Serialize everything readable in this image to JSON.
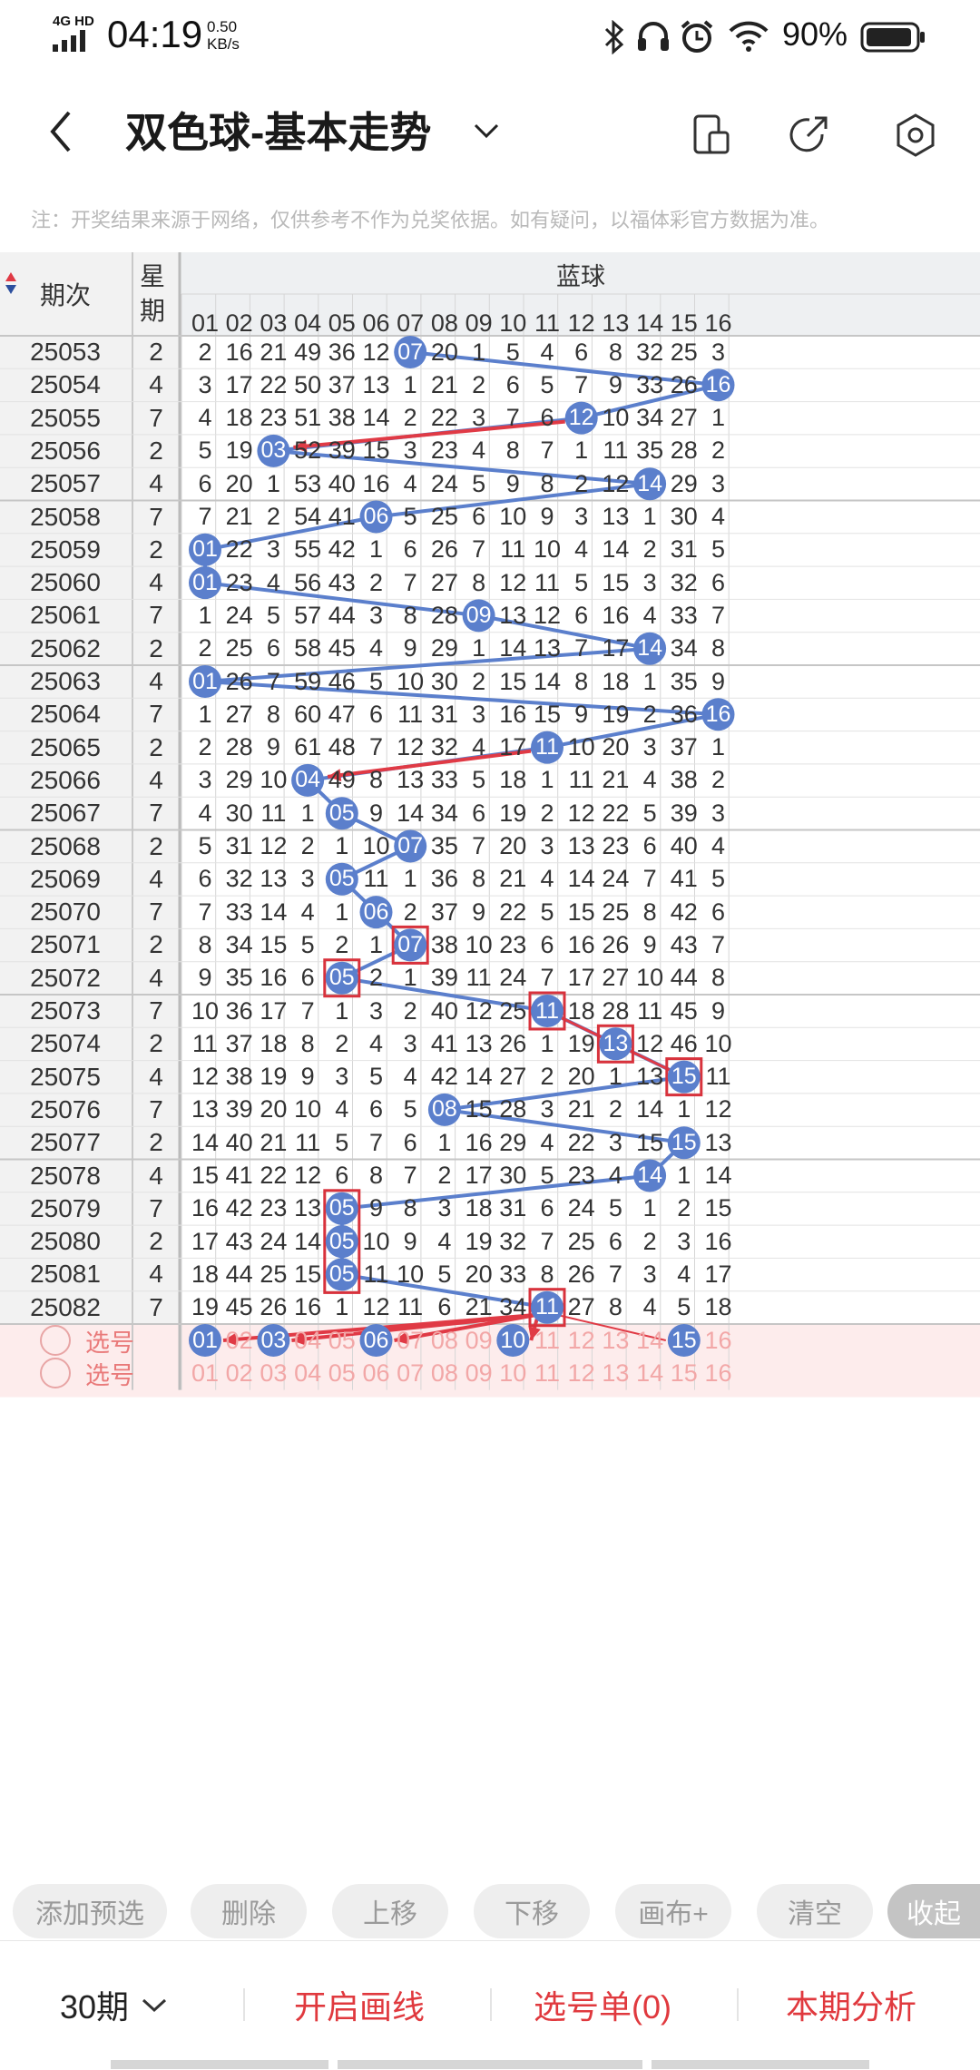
{
  "status_bar": {
    "network": "4G HD",
    "time": "04:19",
    "speed_value": "0.50",
    "speed_unit": "KB/s",
    "battery": "90%"
  },
  "header": {
    "title": "双色球-基本走势",
    "notice": "注：开奖结果来源于网络，仅供参考不作为兑奖依据。如有疑问，以福体彩官方数据为准。"
  },
  "table": {
    "period_header": "期次",
    "week_header": "星期",
    "blue_header": "蓝球",
    "columns": [
      "01",
      "02",
      "03",
      "04",
      "05",
      "06",
      "07",
      "08",
      "09",
      "10",
      "11",
      "12",
      "13",
      "14",
      "15",
      "16"
    ],
    "rows": [
      {
        "period": "25053",
        "week": "2",
        "cells": [
          2,
          16,
          21,
          49,
          36,
          12,
          "07",
          20,
          1,
          5,
          4,
          6,
          8,
          32,
          25,
          3
        ]
      },
      {
        "period": "25054",
        "week": "4",
        "cells": [
          3,
          17,
          22,
          50,
          37,
          13,
          1,
          21,
          2,
          6,
          5,
          7,
          9,
          33,
          26,
          "16"
        ]
      },
      {
        "period": "25055",
        "week": "7",
        "cells": [
          4,
          18,
          23,
          51,
          38,
          14,
          2,
          22,
          3,
          7,
          6,
          "12",
          10,
          34,
          27,
          1
        ]
      },
      {
        "period": "25056",
        "week": "2",
        "cells": [
          5,
          19,
          "03",
          52,
          39,
          15,
          3,
          23,
          4,
          8,
          7,
          1,
          11,
          35,
          28,
          2
        ]
      },
      {
        "period": "25057",
        "week": "4",
        "cells": [
          6,
          20,
          1,
          53,
          40,
          16,
          4,
          24,
          5,
          9,
          8,
          2,
          12,
          "14",
          29,
          3
        ]
      },
      {
        "period": "25058",
        "week": "7",
        "cells": [
          7,
          21,
          2,
          54,
          41,
          "06",
          5,
          25,
          6,
          10,
          9,
          3,
          13,
          1,
          30,
          4
        ]
      },
      {
        "period": "25059",
        "week": "2",
        "cells": [
          "01",
          22,
          3,
          55,
          42,
          1,
          6,
          26,
          7,
          11,
          10,
          4,
          14,
          2,
          31,
          5
        ]
      },
      {
        "period": "25060",
        "week": "4",
        "cells": [
          "01",
          23,
          4,
          56,
          43,
          2,
          7,
          27,
          8,
          12,
          11,
          5,
          15,
          3,
          32,
          6
        ]
      },
      {
        "period": "25061",
        "week": "7",
        "cells": [
          1,
          24,
          5,
          57,
          44,
          3,
          8,
          28,
          "09",
          13,
          12,
          6,
          16,
          4,
          33,
          7
        ]
      },
      {
        "period": "25062",
        "week": "2",
        "cells": [
          2,
          25,
          6,
          58,
          45,
          4,
          9,
          29,
          1,
          14,
          13,
          7,
          17,
          "14",
          34,
          8
        ]
      },
      {
        "period": "25063",
        "week": "4",
        "cells": [
          "01",
          26,
          7,
          59,
          46,
          5,
          10,
          30,
          2,
          15,
          14,
          8,
          18,
          1,
          35,
          9
        ]
      },
      {
        "period": "25064",
        "week": "7",
        "cells": [
          1,
          27,
          8,
          60,
          47,
          6,
          11,
          31,
          3,
          16,
          15,
          9,
          19,
          2,
          36,
          "16"
        ]
      },
      {
        "period": "25065",
        "week": "2",
        "cells": [
          2,
          28,
          9,
          61,
          48,
          7,
          12,
          32,
          4,
          17,
          "11",
          10,
          20,
          3,
          37,
          1
        ]
      },
      {
        "period": "25066",
        "week": "4",
        "cells": [
          3,
          29,
          10,
          "04",
          49,
          8,
          13,
          33,
          5,
          18,
          1,
          11,
          21,
          4,
          38,
          2
        ]
      },
      {
        "period": "25067",
        "week": "7",
        "cells": [
          4,
          30,
          11,
          1,
          "05",
          9,
          14,
          34,
          6,
          19,
          2,
          12,
          22,
          5,
          39,
          3
        ]
      },
      {
        "period": "25068",
        "week": "2",
        "cells": [
          5,
          31,
          12,
          2,
          1,
          10,
          "07",
          35,
          7,
          20,
          3,
          13,
          23,
          6,
          40,
          4
        ]
      },
      {
        "period": "25069",
        "week": "4",
        "cells": [
          6,
          32,
          13,
          3,
          "05",
          11,
          1,
          36,
          8,
          21,
          4,
          14,
          24,
          7,
          41,
          5
        ]
      },
      {
        "period": "25070",
        "week": "7",
        "cells": [
          7,
          33,
          14,
          4,
          1,
          "06",
          2,
          37,
          9,
          22,
          5,
          15,
          25,
          8,
          42,
          6
        ]
      },
      {
        "period": "25071",
        "week": "2",
        "cells": [
          8,
          34,
          15,
          5,
          2,
          1,
          "07",
          38,
          10,
          23,
          6,
          16,
          26,
          9,
          43,
          7
        ]
      },
      {
        "period": "25072",
        "week": "4",
        "cells": [
          9,
          35,
          16,
          6,
          "05",
          2,
          1,
          39,
          11,
          24,
          7,
          17,
          27,
          10,
          44,
          8
        ]
      },
      {
        "period": "25073",
        "week": "7",
        "cells": [
          10,
          36,
          17,
          7,
          1,
          3,
          2,
          40,
          12,
          25,
          "11",
          18,
          28,
          11,
          45,
          9
        ]
      },
      {
        "period": "25074",
        "week": "2",
        "cells": [
          11,
          37,
          18,
          8,
          2,
          4,
          3,
          41,
          13,
          26,
          1,
          19,
          "13",
          12,
          46,
          10
        ]
      },
      {
        "period": "25075",
        "week": "4",
        "cells": [
          12,
          38,
          19,
          9,
          3,
          5,
          4,
          42,
          14,
          27,
          2,
          20,
          1,
          13,
          "15",
          11
        ]
      },
      {
        "period": "25076",
        "week": "7",
        "cells": [
          13,
          39,
          20,
          10,
          4,
          6,
          5,
          "08",
          15,
          28,
          3,
          21,
          2,
          14,
          1,
          12
        ]
      },
      {
        "period": "25077",
        "week": "2",
        "cells": [
          14,
          40,
          21,
          11,
          5,
          7,
          6,
          1,
          16,
          29,
          4,
          22,
          3,
          15,
          "15",
          13
        ]
      },
      {
        "period": "25078",
        "week": "4",
        "cells": [
          15,
          41,
          22,
          12,
          6,
          8,
          7,
          2,
          17,
          30,
          5,
          23,
          4,
          "14",
          1,
          14
        ]
      },
      {
        "period": "25079",
        "week": "7",
        "cells": [
          16,
          42,
          23,
          13,
          "05",
          9,
          8,
          3,
          18,
          31,
          6,
          24,
          5,
          1,
          2,
          15
        ]
      },
      {
        "period": "25080",
        "week": "2",
        "cells": [
          17,
          43,
          24,
          14,
          "05",
          10,
          9,
          4,
          19,
          32,
          7,
          25,
          6,
          2,
          3,
          16
        ]
      },
      {
        "period": "25081",
        "week": "4",
        "cells": [
          18,
          44,
          25,
          15,
          "05",
          11,
          10,
          5,
          20,
          33,
          8,
          26,
          7,
          3,
          4,
          17
        ]
      },
      {
        "period": "25082",
        "week": "7",
        "cells": [
          19,
          45,
          26,
          16,
          1,
          12,
          11,
          6,
          21,
          34,
          "11",
          27,
          8,
          4,
          5,
          18
        ]
      }
    ],
    "pick_rows": [
      {
        "label": "选号",
        "selected": [
          "01",
          "03",
          "06",
          "10",
          "15"
        ]
      },
      {
        "label": "选号",
        "selected": []
      }
    ]
  },
  "toolbar": [
    "添加预选",
    "删除",
    "上移",
    "下移",
    "画布+",
    "清空",
    "收起"
  ],
  "bottom_bar": {
    "periods": "30期",
    "draw_line": "开启画线",
    "pick_list": "选号单(0)",
    "analysis": "本期分析"
  },
  "colors": {
    "ball": "#5b7fcc",
    "line": "#5b7fcc",
    "red_line": "#e03a45",
    "pick_bg": "#fdecec",
    "highlight_box": "#d8323c"
  }
}
